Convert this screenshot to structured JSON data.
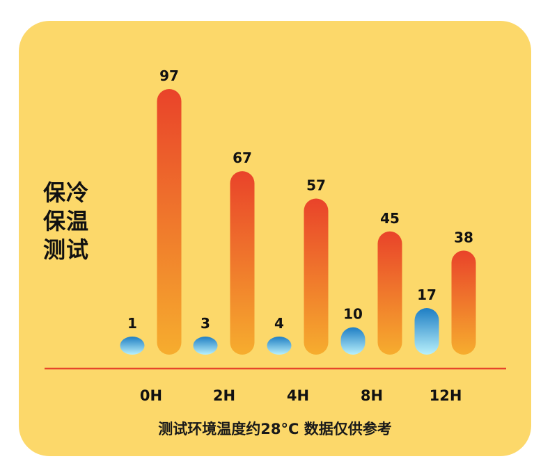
{
  "label_lines": [
    "保冷",
    "保温",
    "测试"
  ],
  "footer_note": "测试环境温度约28°C 数据仅供参考",
  "colors": {
    "background": "#fcd86a",
    "baseline": "#e6452a",
    "hot_top": "#e9432a",
    "hot_bottom": "#f6ad2e",
    "cold_top": "#1e7ec4",
    "cold_bottom": "#b8f0fb"
  },
  "chart_data": {
    "type": "bar",
    "categories": [
      "0H",
      "2H",
      "4H",
      "8H",
      "12H"
    ],
    "series": [
      {
        "values": [
          1,
          3,
          4,
          10,
          17
        ]
      },
      {
        "values": [
          97,
          67,
          57,
          45,
          38
        ]
      }
    ],
    "ylim": [
      0,
      97
    ],
    "grid": false,
    "legend": "none"
  }
}
